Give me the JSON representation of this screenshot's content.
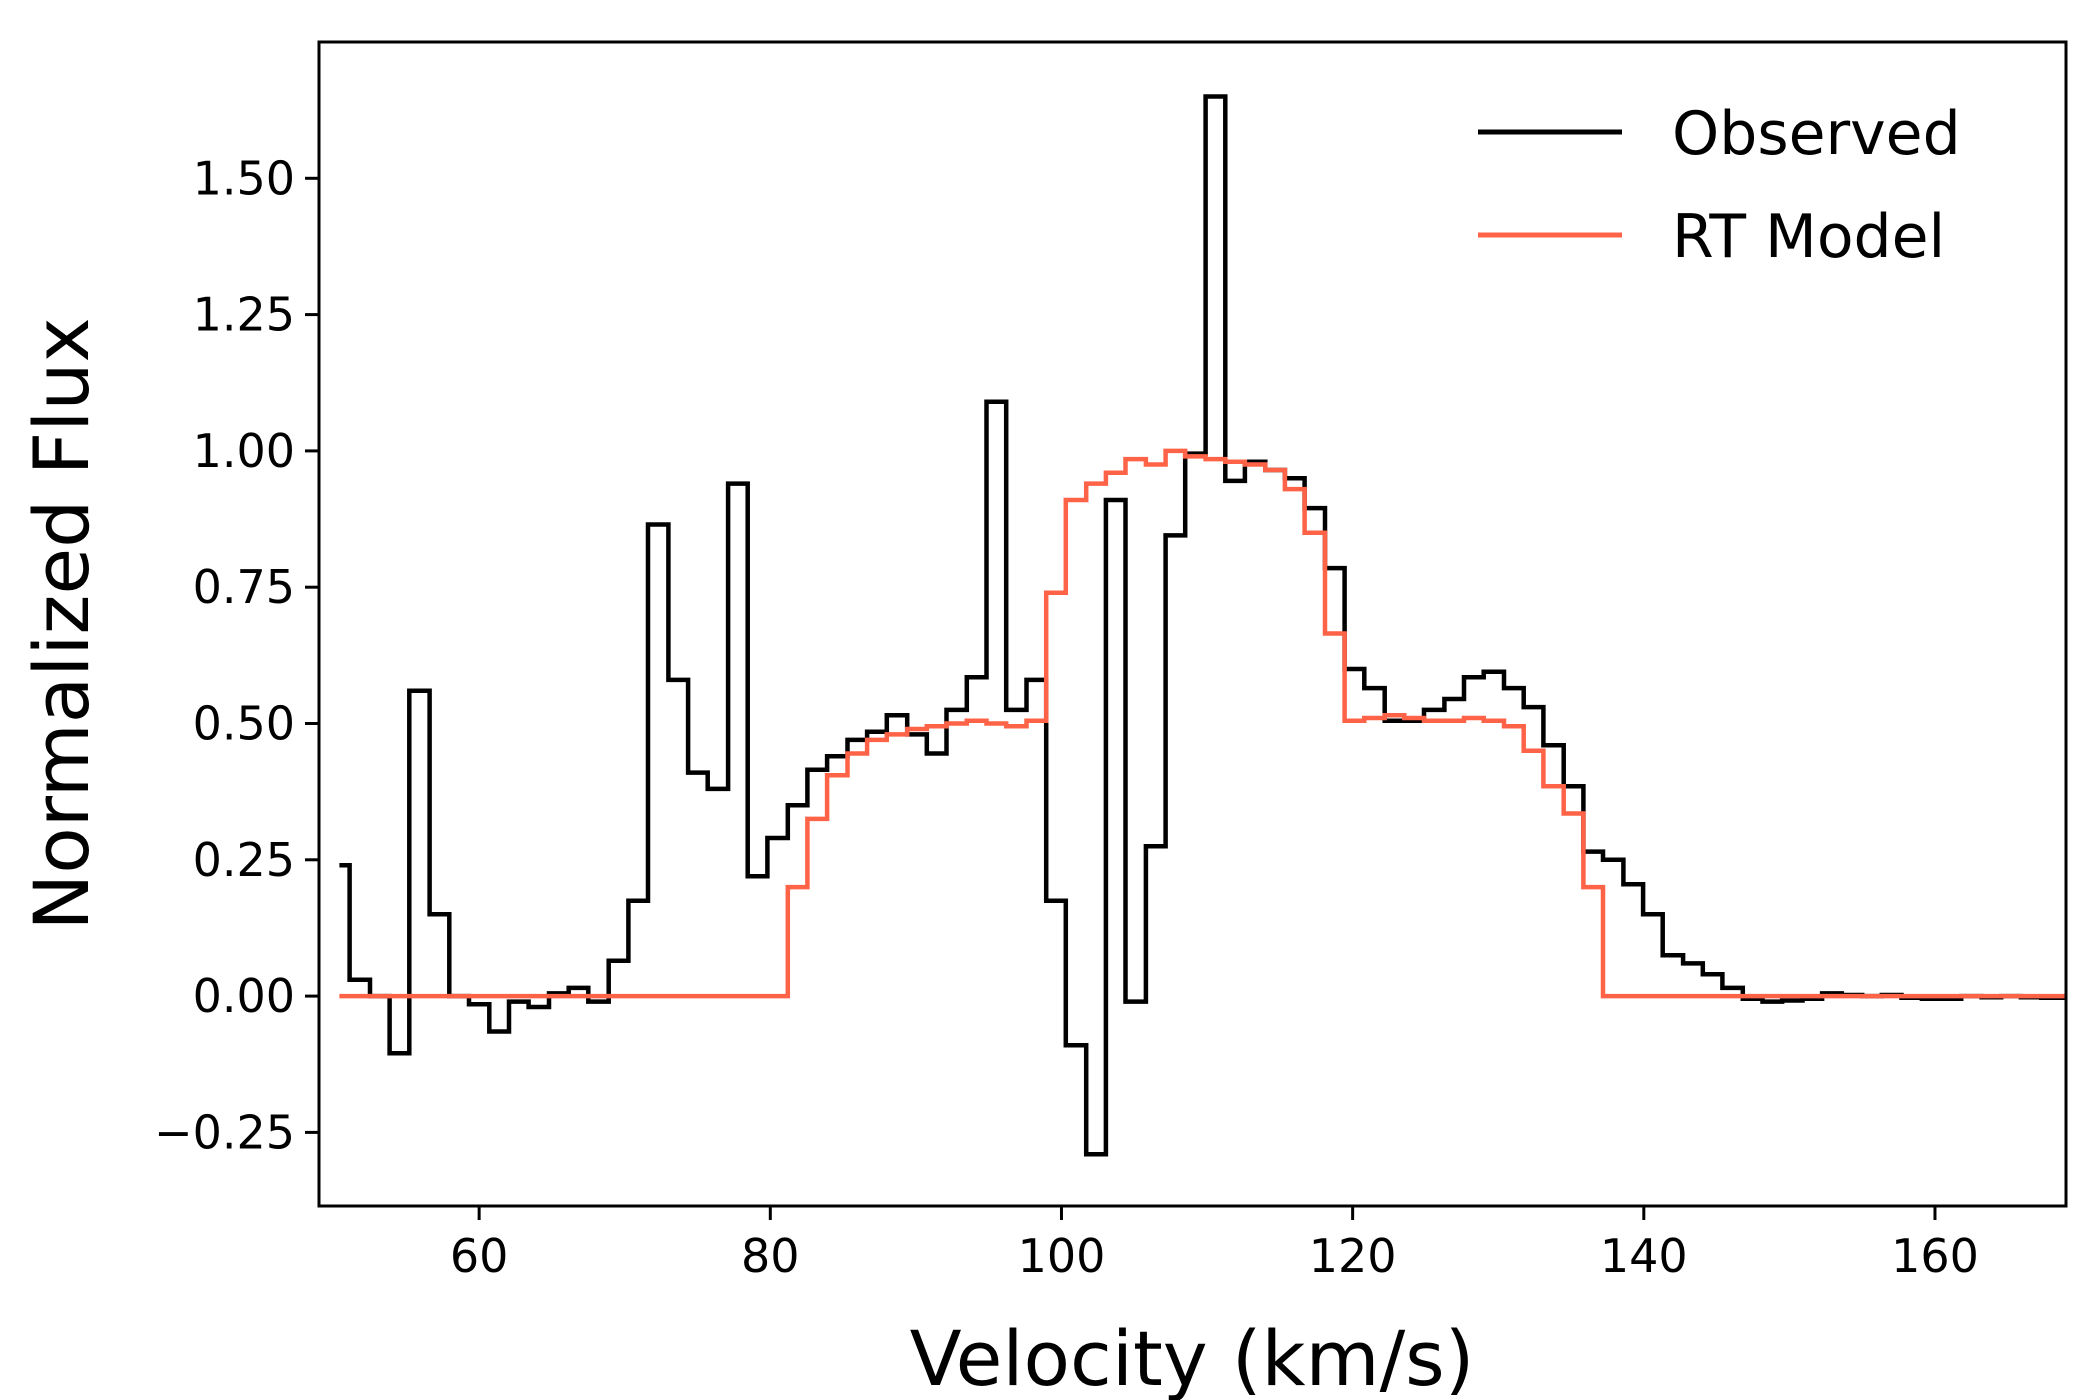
{
  "chart_data": {
    "type": "line",
    "drawstyle": "steps-mid",
    "title": "",
    "xlabel": "Velocity (km/s)",
    "ylabel": "Normalized Flux",
    "xlim": [
      49,
      169
    ],
    "ylim": [
      -0.385,
      1.75
    ],
    "xticks": [
      60,
      80,
      100,
      120,
      140,
      160
    ],
    "yticks": [
      -0.25,
      0.0,
      0.25,
      0.5,
      0.75,
      1.0,
      1.25,
      1.5
    ],
    "xtick_labels": [
      "60",
      "80",
      "100",
      "120",
      "140",
      "160"
    ],
    "ytick_labels": [
      "−0.25",
      "0.00",
      "0.25",
      "0.50",
      "0.75",
      "1.00",
      "1.25",
      "1.50"
    ],
    "grid": false,
    "legend_position": "upper right",
    "series": [
      {
        "name": "Observed",
        "color": "#000000",
        "x": [
          50.4,
          51.8,
          53.2,
          54.5,
          55.9,
          57.3,
          58.6,
          60.0,
          61.4,
          62.7,
          64.1,
          65.5,
          66.8,
          68.2,
          69.6,
          70.9,
          72.3,
          73.7,
          75.0,
          76.4,
          77.8,
          79.1,
          80.5,
          81.9,
          83.2,
          84.6,
          86.0,
          87.3,
          88.7,
          90.1,
          91.4,
          92.8,
          94.2,
          95.5,
          96.9,
          98.3,
          99.6,
          101.0,
          102.4,
          103.7,
          105.1,
          106.5,
          107.8,
          109.2,
          110.6,
          111.9,
          113.3,
          114.7,
          116.0,
          117.4,
          118.8,
          120.1,
          121.5,
          122.9,
          124.2,
          125.6,
          127.0,
          128.3,
          129.7,
          131.1,
          132.4,
          133.8,
          135.2,
          136.5,
          137.9,
          139.3,
          140.6,
          142.0,
          143.4,
          144.7,
          146.1,
          147.5,
          148.8,
          150.2,
          151.6,
          152.9,
          154.3,
          155.7,
          157.0,
          158.4,
          159.8,
          161.1,
          162.5,
          163.9,
          165.2,
          166.6,
          168.0
        ],
        "values": [
          0.24,
          0.03,
          0.0,
          -0.105,
          0.56,
          0.15,
          0.0,
          -0.015,
          -0.065,
          -0.01,
          -0.02,
          0.005,
          0.015,
          -0.01,
          0.065,
          0.175,
          0.865,
          0.58,
          0.41,
          0.38,
          0.94,
          0.22,
          0.29,
          0.35,
          0.415,
          0.44,
          0.47,
          0.485,
          0.515,
          0.48,
          0.445,
          0.525,
          0.585,
          1.09,
          0.525,
          0.58,
          0.175,
          -0.09,
          -0.29,
          0.91,
          -0.01,
          0.275,
          0.845,
          0.995,
          1.65,
          0.945,
          0.98,
          0.965,
          0.95,
          0.895,
          0.785,
          0.6,
          0.565,
          0.505,
          0.505,
          0.525,
          0.545,
          0.585,
          0.595,
          0.565,
          0.53,
          0.46,
          0.385,
          0.265,
          0.25,
          0.205,
          0.15,
          0.075,
          0.06,
          0.04,
          0.015,
          -0.005,
          -0.01,
          -0.008,
          -0.005,
          0.005,
          0.002,
          0.0,
          0.002,
          -0.003,
          -0.005,
          -0.005,
          0.0,
          -0.002,
          0.0,
          -0.002,
          -0.003
        ]
      },
      {
        "name": "RT Model",
        "color": "#FF6347",
        "x": [
          50.4,
          51.8,
          53.2,
          54.5,
          55.9,
          57.3,
          58.6,
          60.0,
          61.4,
          62.7,
          64.1,
          65.5,
          66.8,
          68.2,
          69.6,
          70.9,
          72.3,
          73.7,
          75.0,
          76.4,
          77.8,
          79.1,
          80.5,
          81.9,
          83.2,
          84.6,
          86.0,
          87.3,
          88.7,
          90.1,
          91.4,
          92.8,
          94.2,
          95.5,
          96.9,
          98.3,
          99.6,
          101.0,
          102.4,
          103.7,
          105.1,
          106.5,
          107.8,
          109.2,
          110.6,
          111.9,
          113.3,
          114.7,
          116.0,
          117.4,
          118.8,
          120.1,
          121.5,
          122.9,
          124.2,
          125.6,
          127.0,
          128.3,
          129.7,
          131.1,
          132.4,
          133.8,
          135.2,
          136.5,
          137.9,
          139.3,
          140.6,
          142.0,
          143.4,
          144.7,
          146.1,
          147.5,
          148.8,
          150.2,
          151.6,
          152.9,
          154.3,
          155.7,
          157.0,
          158.4,
          159.8,
          161.1,
          162.5,
          163.9,
          165.2,
          166.6,
          168.0
        ],
        "values": [
          0.0,
          0.0,
          0.0,
          0.0,
          0.0,
          0.0,
          0.0,
          0.0,
          0.0,
          0.0,
          0.0,
          0.0,
          0.0,
          0.0,
          0.0,
          0.0,
          0.0,
          0.0,
          0.0,
          0.0,
          0.0,
          0.0,
          0.0,
          0.2,
          0.325,
          0.405,
          0.445,
          0.47,
          0.48,
          0.49,
          0.495,
          0.5,
          0.505,
          0.5,
          0.495,
          0.505,
          0.74,
          0.91,
          0.94,
          0.96,
          0.985,
          0.975,
          1.0,
          0.99,
          0.985,
          0.98,
          0.975,
          0.965,
          0.93,
          0.85,
          0.665,
          0.505,
          0.51,
          0.515,
          0.51,
          0.505,
          0.505,
          0.51,
          0.505,
          0.495,
          0.45,
          0.385,
          0.335,
          0.2,
          0.0,
          0.0,
          0.0,
          0.0,
          0.0,
          0.0,
          0.0,
          0.0,
          0.0,
          0.0,
          0.0,
          0.0,
          0.0,
          0.0,
          0.0,
          0.0,
          0.0,
          0.0,
          0.0,
          0.0,
          0.0,
          0.0,
          0.0
        ]
      }
    ]
  }
}
